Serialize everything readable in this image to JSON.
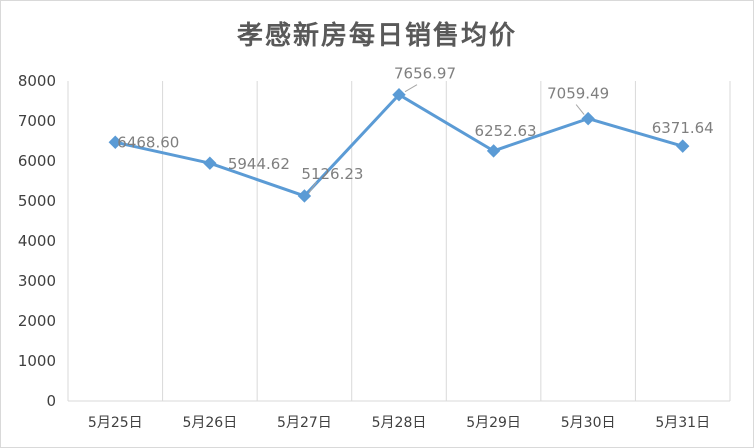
{
  "chart_data": {
    "type": "line",
    "title": "孝感新房每日销售均价",
    "xlabel": "",
    "ylabel": "",
    "categories": [
      "5月25日",
      "5月26日",
      "5月27日",
      "5月28日",
      "5月29日",
      "5月30日",
      "5月31日"
    ],
    "series": [
      {
        "values": [
          6468.6,
          5944.62,
          5126.23,
          7656.97,
          6252.63,
          7059.49,
          6371.64
        ],
        "value_labels": [
          "6468.60",
          "5944.62",
          "5126.23",
          "7656.97",
          "6252.63",
          "7059.49",
          "6371.64"
        ],
        "color": "#5b9bd5",
        "marker": "diamond"
      }
    ],
    "ylim": [
      0,
      8000
    ],
    "y_ticks": [
      0,
      1000,
      2000,
      3000,
      4000,
      5000,
      6000,
      7000,
      8000
    ],
    "y_tick_labels": [
      "0",
      "1000",
      "2000",
      "3000",
      "4000",
      "5000",
      "6000",
      "7000",
      "8000"
    ],
    "grid": "vertical",
    "legend": "none",
    "colors": {
      "line": "#5b9bd5",
      "grid": "#d9d9d9",
      "axis_text": "#404040",
      "data_label": "#7f7f7f",
      "title": "#595959"
    }
  }
}
